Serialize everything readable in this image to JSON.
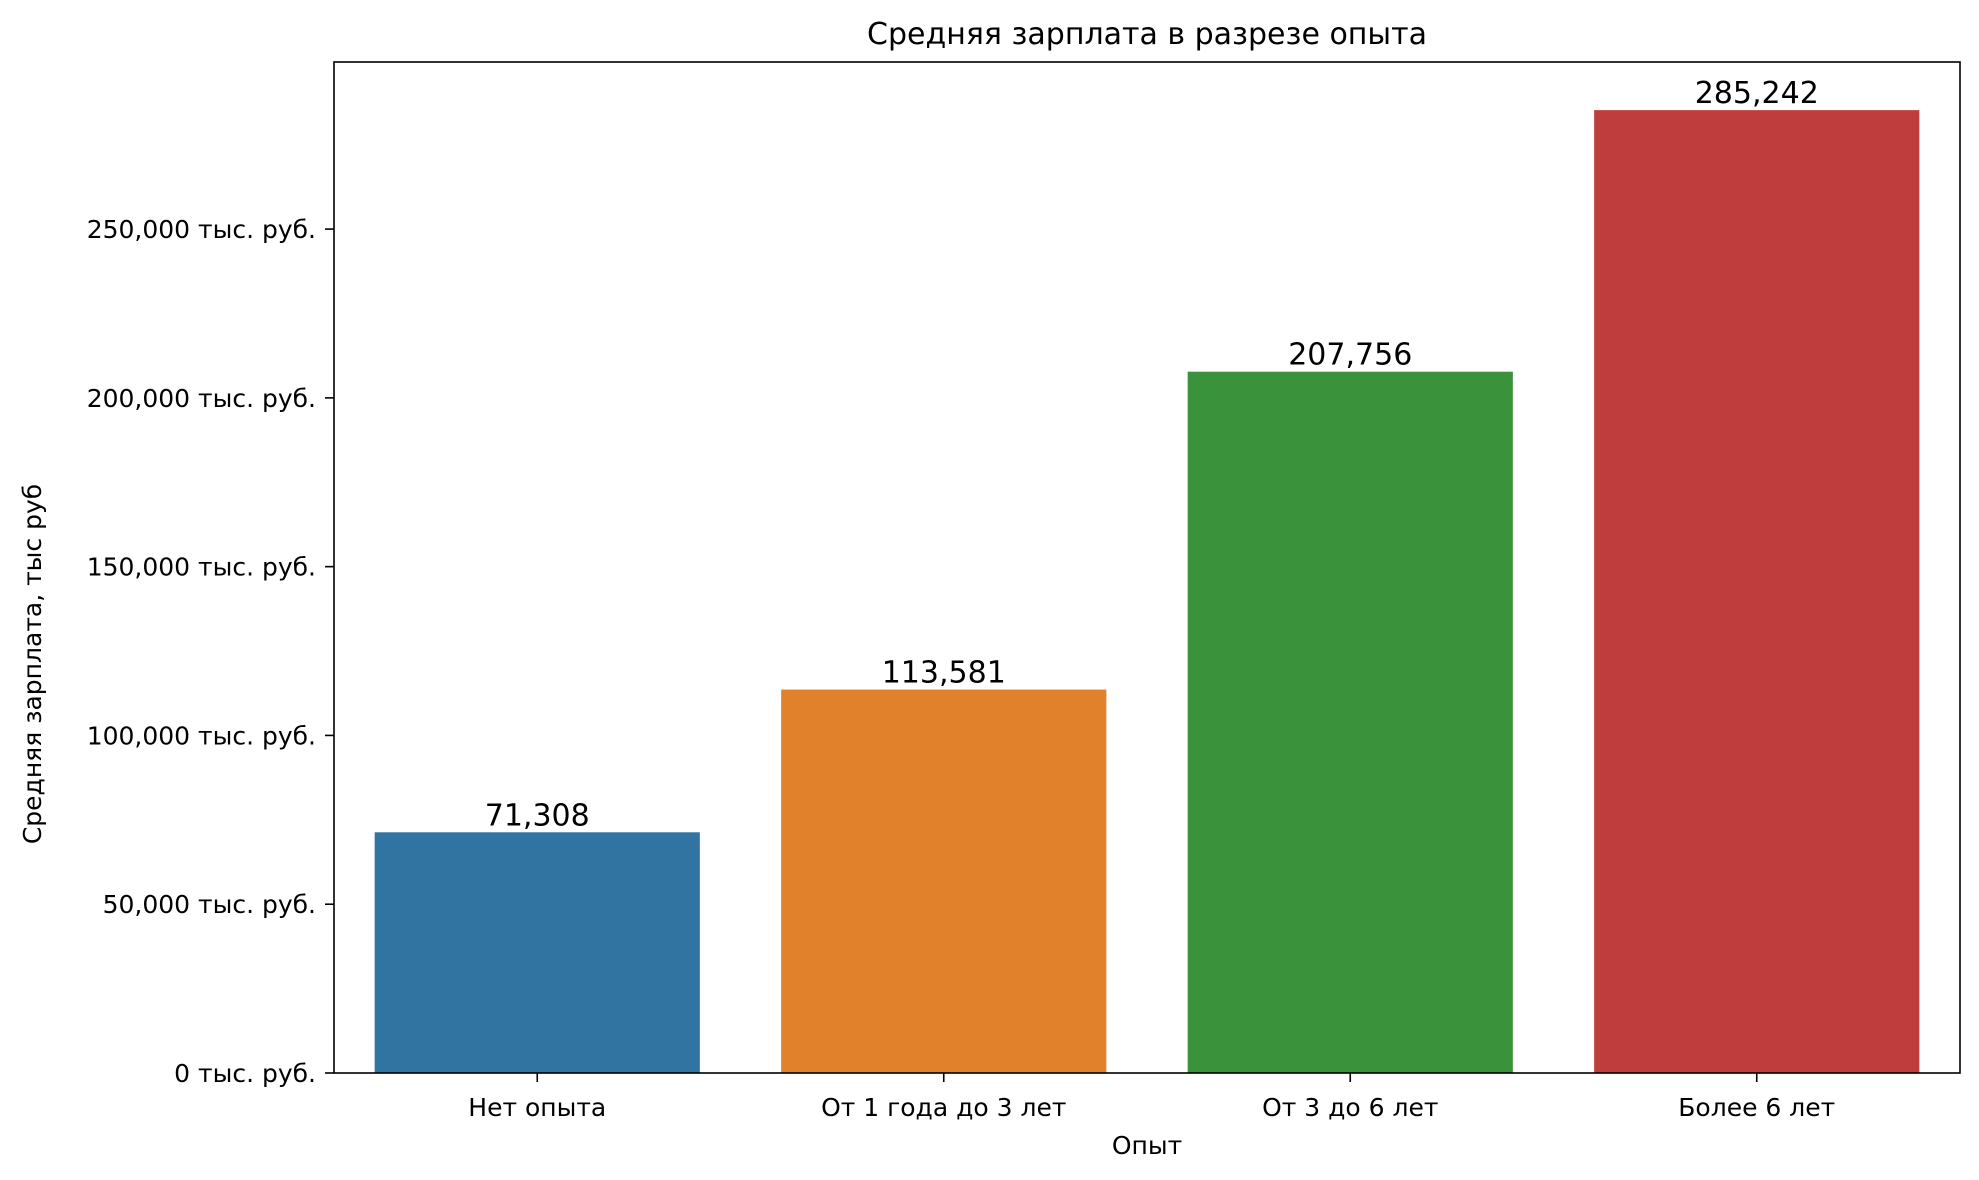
{
  "chart_data": {
    "type": "bar",
    "title": "Средняя зарплата в разрезе опыта",
    "xlabel": "Опыт",
    "ylabel": "Средняя зарплата, тыс руб",
    "categories": [
      "Нет опыта",
      "От 1 года до 3 лет",
      "От 3 до 6 лет",
      "Более 6 лет"
    ],
    "values": [
      71308,
      113581,
      207756,
      285242
    ],
    "value_labels": [
      "71,308",
      "113,581",
      "207,756",
      "285,242"
    ],
    "colors": [
      "#3274a1",
      "#e1812c",
      "#3a923a",
      "#c03d3e"
    ],
    "ylim": [
      0,
      299498
    ],
    "yticks": [
      0,
      50000,
      100000,
      150000,
      200000,
      250000
    ],
    "ytick_labels": [
      "0 тыс. руб.",
      "50,000 тыс. руб.",
      "100,000 тыс. руб.",
      "150,000 тыс. руб.",
      "200,000 тыс. руб.",
      "250,000 тыс. руб."
    ],
    "grid": false,
    "legend": false
  }
}
